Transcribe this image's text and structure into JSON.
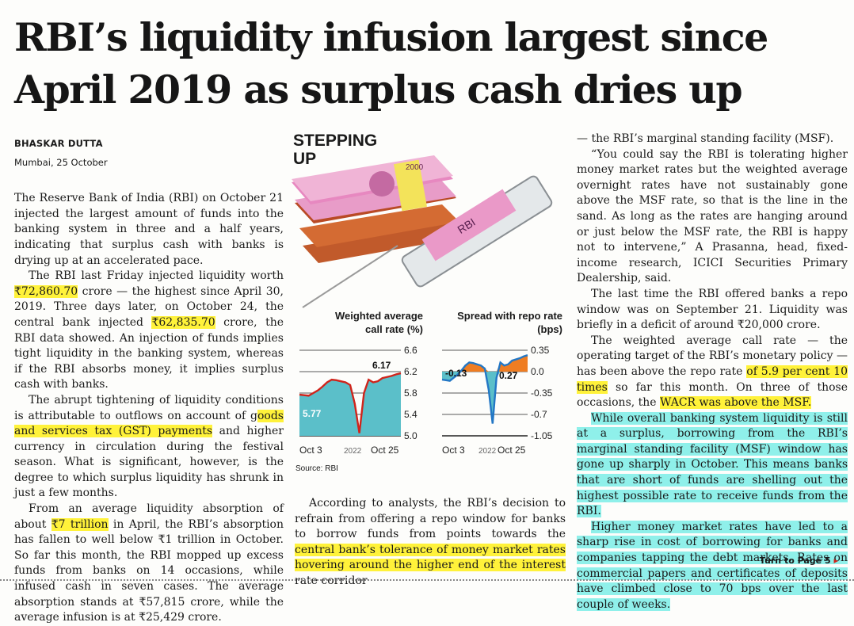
{
  "headline": {
    "line1": "RBI’s liquidity infusion largest since",
    "line2": "April 2019 as surplus cash dries up"
  },
  "byline": {
    "author": "BHASKAR DUTTA",
    "dateline": "Mumbai, 25 October"
  },
  "col1": {
    "p1": "The Reserve Bank of India (RBI) on October 21 injected the largest amount of funds into the banking system in three and a half years, indicating that surplus cash with banks is drying up at an accelerated pace.",
    "p2a": "The RBI last Friday injected liquidity worth ",
    "p2b": "₹72,860.70",
    "p2c": " crore — the highest since April 30, 2019. Three days later, on October 24, the central bank injected ",
    "p2d": "₹62,835.70",
    "p2e": " crore, the RBI data showed. An injection of funds implies tight liquidity in the banking system, whereas if the RBI absorbs money, it implies surplus cash with banks.",
    "p3a": "The abrupt tightening of liquidity conditions is attributable to outflows on account of g",
    "p3b": "oods and services tax (GST) payments",
    "p3c": " and higher currency in circulation during the festival season. What is significant, however, is the degree to which surplus liquidity has shrunk in just a few months.",
    "p4a": "From an average liquidity absorption of about ",
    "p4b": "₹7 trillion",
    "p4c": " in April, the RBI’s absorption has fallen to well below ₹1 trillion in October. So far this month, the RBI mopped up excess funds from banks on 14 occasions, while infused cash in seven cases. The average absorption stands at ₹57,815 crore, while the average infusion is at ₹25,429 crore."
  },
  "col2": {
    "p1a": "According to analysts, the RBI’s decision to refrain from offering a repo window for banks to borrow funds from points towards the ",
    "p1b": "central bank’s tolerance of money market rates hovering around the higher end of the interest",
    "p1c": " rate corridor"
  },
  "col3": {
    "p0": "— the RBI’s marginal standing facility (MSF).",
    "p1": "“You could say the RBI is tolerating higher money market rates but the weighted average overnight rates have not sustainably gone above the MSF rate, so that is the line in the sand. As long as the rates are hanging around or just below the MSF rate, the RBI is happy not to intervene,” A Prasanna, head, fixed-income research, ICICI Securities Primary Dealership, said.",
    "p2": "The last time the RBI offered banks a repo window was on September 21. Liquidity was briefly in a deficit of around ₹20,000 crore.",
    "p3a": "The weighted average call rate — the operating target of the RBI’s monetary policy — has been above the repo rate ",
    "p3b": "of 5.9 per cent 10 times",
    "p3c": " so far this month. On three of those occasions, the ",
    "p3d": "WACR was above the MSF.",
    "p4": "While overall banking system liquidity is still at a surplus, borrowing from the RBI’s marginal standing facility (MSF) window has gone up sharply in October. This means banks that are short of funds are shelling out the highest possible rate to receive funds from the RBI.",
    "p5": "Higher money market rates have led to a sharp rise in cost of borrowing for banks and companies tapping the debt markets. Rates on commercial papers and certificates of deposits have climbed close to 70 bps over the last couple of weeks."
  },
  "turn": {
    "label": "Turn to Page 5",
    "arrow": "▸"
  },
  "graphic": {
    "title_line1": "STEPPING",
    "title_line2": "UP",
    "note_denom": "2000",
    "note_rbi": "RBI",
    "source": "Source: RBI"
  },
  "colors": {
    "highlight_yellow": "#fff23a",
    "highlight_cyan": "#8ff0ea",
    "chart1_fill": "#5bbfc9",
    "chart1_line": "#d0241b",
    "chart2_up_fill": "#ef7d22",
    "chart2_down_fill": "#5bbfc9",
    "note_pink": "#e88cc0"
  },
  "chart_data": [
    {
      "type": "area",
      "title": "Weighted average call rate (%)",
      "x_start": "Oct 3",
      "x_mid": "2022",
      "x_end": "Oct 25",
      "yticks": [
        "6.6",
        "6.2",
        "5.8",
        "5.4",
        "5.0"
      ],
      "ylim": [
        5.0,
        6.6
      ],
      "values": [
        5.77,
        5.76,
        5.75,
        5.8,
        5.85,
        5.92,
        6.0,
        6.05,
        6.04,
        6.02,
        6.0,
        5.95,
        5.6,
        5.05,
        5.8,
        6.05,
        6.0,
        6.02,
        6.08,
        6.1,
        6.12,
        6.15,
        6.17
      ],
      "label_first": "5.77",
      "label_last": "6.17"
    },
    {
      "type": "area",
      "title": "Spread with repo rate (bps)",
      "x_start": "Oct 3",
      "x_mid": "2022",
      "x_end": "Oct 25",
      "yticks": [
        "0.35",
        "0.0",
        "-0.35",
        "-0.7",
        "-1.05"
      ],
      "ylim": [
        -1.05,
        0.35
      ],
      "values": [
        -0.13,
        -0.14,
        -0.15,
        -0.1,
        -0.05,
        0.02,
        0.1,
        0.15,
        0.14,
        0.12,
        0.1,
        0.05,
        -0.3,
        -0.85,
        -0.1,
        0.15,
        0.1,
        0.12,
        0.18,
        0.2,
        0.22,
        0.25,
        0.27
      ],
      "label_first": "-0.13",
      "label_last": "0.27"
    }
  ]
}
